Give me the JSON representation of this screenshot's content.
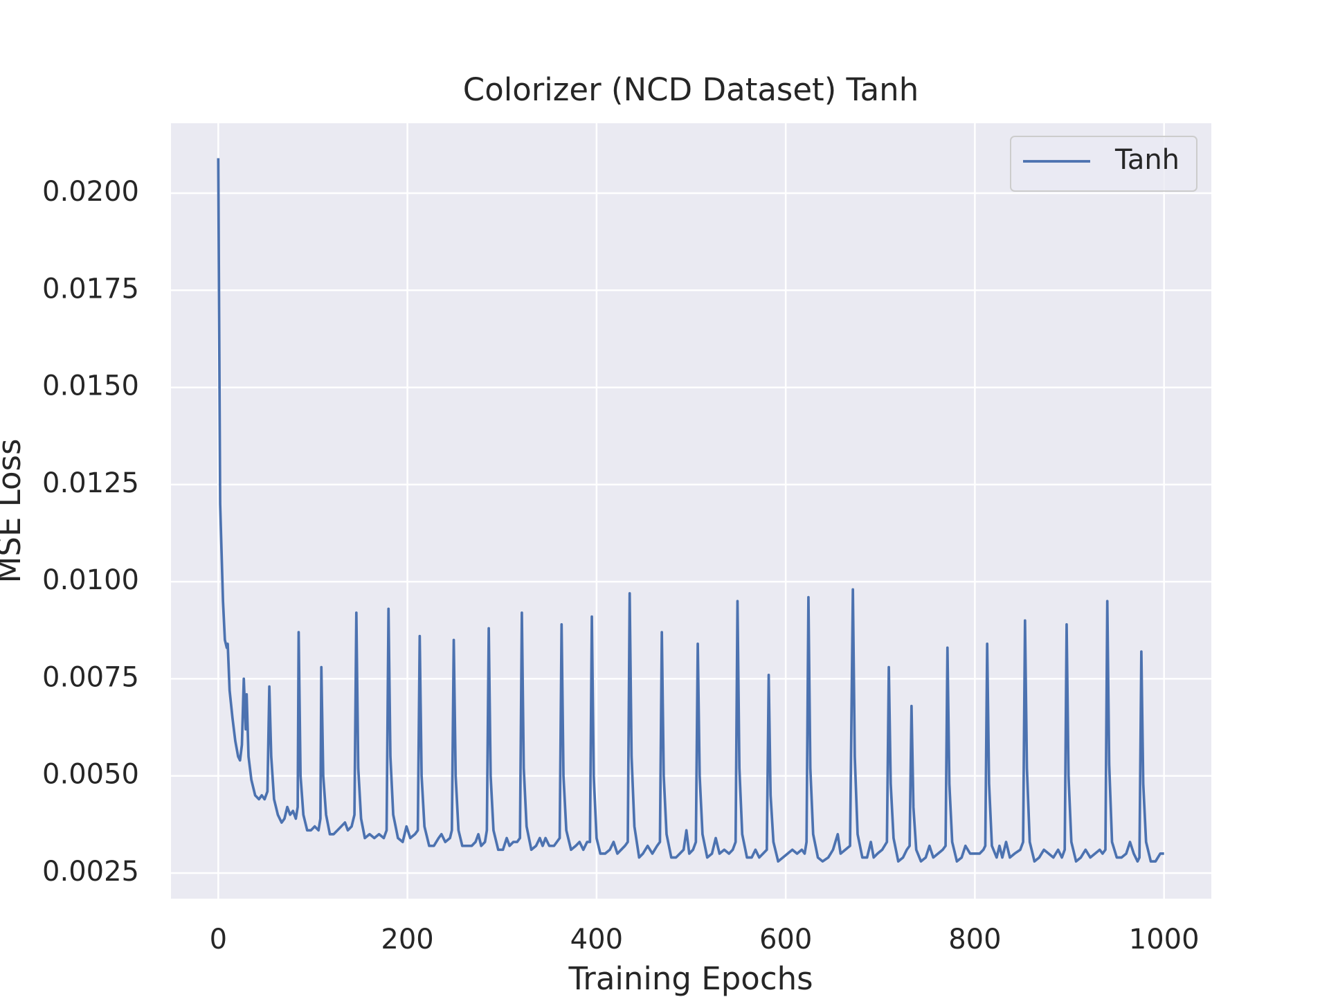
{
  "chart_data": {
    "type": "line",
    "title": "Colorizer (NCD Dataset) Tanh",
    "x_label": "Training Epochs",
    "y_label": "MSE Loss",
    "xlim": [
      -50,
      1050
    ],
    "ylim": [
      0.00184,
      0.0218
    ],
    "xticks": [
      0,
      200,
      400,
      600,
      800,
      1000
    ],
    "yticks": [
      0.0025,
      {
        "value": 0.005,
        "label": "0.0050"
      },
      0.0075,
      {
        "value": 0.01,
        "label": "0.0100"
      },
      0.0125,
      {
        "value": 0.015,
        "label": "0.0150"
      },
      0.0175,
      {
        "value": 0.02,
        "label": "0.0200"
      }
    ],
    "grid": true,
    "legend": "upper right",
    "x": [
      0,
      2,
      5,
      7,
      9,
      10,
      12,
      15,
      18,
      21,
      23,
      25,
      27,
      29,
      30,
      32,
      35,
      39,
      43,
      46,
      49,
      52,
      54,
      56,
      59,
      63,
      67,
      70,
      73,
      76,
      79,
      82,
      84,
      85,
      87,
      90,
      94,
      98,
      102,
      106,
      108,
      109,
      111,
      114,
      118,
      122,
      126,
      130,
      134,
      137,
      141,
      144,
      146,
      148,
      151,
      155,
      160,
      165,
      170,
      175,
      178,
      180,
      182,
      185,
      190,
      195,
      199,
      203,
      208,
      211,
      213,
      215,
      218,
      223,
      228,
      233,
      236,
      240,
      245,
      247,
      249,
      251,
      254,
      258,
      263,
      268,
      272,
      275,
      278,
      282,
      284,
      286,
      288,
      291,
      296,
      301,
      305,
      308,
      312,
      316,
      319,
      321,
      323,
      326,
      331,
      336,
      340,
      343,
      346,
      350,
      355,
      358,
      361,
      363,
      365,
      368,
      373,
      378,
      382,
      386,
      390,
      393,
      395,
      397,
      400,
      404,
      409,
      414,
      418,
      422,
      426,
      430,
      433,
      435,
      437,
      440,
      445,
      449,
      454,
      459,
      464,
      467,
      469,
      471,
      474,
      479,
      484,
      488,
      492,
      495,
      498,
      502,
      505,
      507,
      509,
      512,
      517,
      522,
      526,
      530,
      535,
      540,
      544,
      547,
      549,
      551,
      554,
      559,
      564,
      568,
      572,
      576,
      580,
      582,
      584,
      587,
      592,
      597,
      602,
      607,
      612,
      617,
      620,
      622,
      624,
      626,
      629,
      634,
      639,
      645,
      650,
      655,
      658,
      663,
      668,
      671,
      673,
      676,
      681,
      686,
      690,
      693,
      697,
      702,
      707,
      709,
      711,
      714,
      719,
      724,
      728,
      731,
      733,
      735,
      738,
      743,
      748,
      752,
      756,
      761,
      766,
      769,
      771,
      773,
      776,
      781,
      786,
      790,
      795,
      800,
      805,
      809,
      811,
      813,
      815,
      818,
      823,
      826,
      829,
      833,
      837,
      842,
      848,
      851,
      853,
      855,
      858,
      863,
      868,
      873,
      878,
      883,
      888,
      892,
      895,
      897,
      899,
      902,
      907,
      912,
      917,
      922,
      927,
      932,
      935,
      938,
      940,
      942,
      945,
      950,
      955,
      960,
      964,
      968,
      972,
      974,
      976,
      978,
      981,
      986,
      991,
      996,
      1000
    ],
    "series": [
      {
        "name": "Tanh",
        "color": "#4c72b0",
        "values": [
          0.0209,
          0.012,
          0.0095,
          0.0085,
          0.0083,
          0.0084,
          0.0072,
          0.0065,
          0.0059,
          0.0055,
          0.0054,
          0.0058,
          0.0075,
          0.0062,
          0.0071,
          0.0055,
          0.0049,
          0.0045,
          0.0044,
          0.0045,
          0.0044,
          0.0046,
          0.0073,
          0.0055,
          0.0044,
          0.004,
          0.0038,
          0.0039,
          0.0042,
          0.004,
          0.0041,
          0.0039,
          0.0042,
          0.0087,
          0.005,
          0.004,
          0.0036,
          0.0036,
          0.0037,
          0.0036,
          0.0039,
          0.0078,
          0.005,
          0.004,
          0.0035,
          0.0035,
          0.0036,
          0.0037,
          0.0038,
          0.0036,
          0.0037,
          0.004,
          0.0092,
          0.0052,
          0.0039,
          0.0034,
          0.0035,
          0.0034,
          0.0035,
          0.0034,
          0.0036,
          0.0093,
          0.0055,
          0.004,
          0.0034,
          0.0033,
          0.0037,
          0.0034,
          0.0035,
          0.0036,
          0.0086,
          0.005,
          0.0037,
          0.0032,
          0.0032,
          0.0034,
          0.0035,
          0.0033,
          0.0034,
          0.0036,
          0.0085,
          0.005,
          0.0036,
          0.0032,
          0.0032,
          0.0032,
          0.0033,
          0.0035,
          0.0032,
          0.0033,
          0.0036,
          0.0088,
          0.005,
          0.0036,
          0.0031,
          0.0031,
          0.0034,
          0.0032,
          0.0033,
          0.0033,
          0.0034,
          0.0092,
          0.0052,
          0.0037,
          0.0031,
          0.0032,
          0.0034,
          0.0032,
          0.0034,
          0.0032,
          0.0032,
          0.0033,
          0.0034,
          0.0089,
          0.005,
          0.0036,
          0.0031,
          0.0032,
          0.0033,
          0.0031,
          0.0033,
          0.0033,
          0.0091,
          0.005,
          0.0034,
          0.003,
          0.003,
          0.0031,
          0.0033,
          0.003,
          0.0031,
          0.0032,
          0.0033,
          0.0097,
          0.0055,
          0.0037,
          0.0029,
          0.003,
          0.0032,
          0.003,
          0.0032,
          0.0033,
          0.0087,
          0.005,
          0.0035,
          0.0029,
          0.0029,
          0.003,
          0.0031,
          0.0036,
          0.003,
          0.0031,
          0.0033,
          0.0084,
          0.005,
          0.0035,
          0.0029,
          0.003,
          0.0034,
          0.003,
          0.0031,
          0.003,
          0.0031,
          0.0033,
          0.0095,
          0.0052,
          0.0035,
          0.0029,
          0.0029,
          0.0031,
          0.0029,
          0.003,
          0.0031,
          0.0076,
          0.0045,
          0.0033,
          0.0028,
          0.0029,
          0.003,
          0.0031,
          0.003,
          0.0031,
          0.003,
          0.0033,
          0.0096,
          0.0052,
          0.0035,
          0.0029,
          0.0028,
          0.0029,
          0.0031,
          0.0035,
          0.003,
          0.0031,
          0.0032,
          0.0098,
          0.0055,
          0.0035,
          0.0029,
          0.0029,
          0.0033,
          0.0029,
          0.003,
          0.0031,
          0.0033,
          0.0078,
          0.0048,
          0.0034,
          0.0028,
          0.0029,
          0.0031,
          0.0032,
          0.0068,
          0.0042,
          0.0031,
          0.0028,
          0.0029,
          0.0032,
          0.0029,
          0.003,
          0.0031,
          0.0032,
          0.0083,
          0.0048,
          0.0033,
          0.0028,
          0.0029,
          0.0032,
          0.003,
          0.003,
          0.003,
          0.0031,
          0.0032,
          0.0084,
          0.0048,
          0.0032,
          0.0029,
          0.0032,
          0.0029,
          0.0033,
          0.0029,
          0.003,
          0.0031,
          0.0033,
          0.009,
          0.0052,
          0.0033,
          0.0028,
          0.0029,
          0.0031,
          0.003,
          0.0029,
          0.0031,
          0.0029,
          0.0031,
          0.0089,
          0.005,
          0.0033,
          0.0028,
          0.0029,
          0.0031,
          0.0029,
          0.003,
          0.0031,
          0.003,
          0.0031,
          0.0095,
          0.0053,
          0.0033,
          0.0029,
          0.0029,
          0.003,
          0.0033,
          0.003,
          0.0028,
          0.0029,
          0.0082,
          0.0048,
          0.0033,
          0.0028,
          0.0028,
          0.003,
          0.003
        ]
      }
    ]
  }
}
